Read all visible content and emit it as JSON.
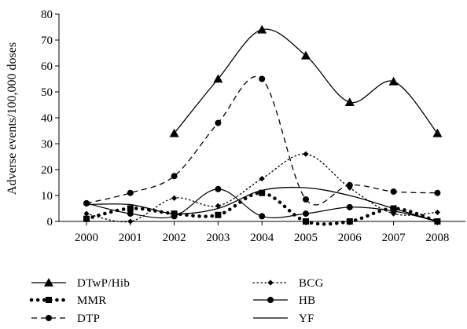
{
  "chart_data": {
    "type": "line",
    "ylabel": "Adverse events/100,000 doses",
    "ylim": [
      0,
      80
    ],
    "yticks": [
      0,
      10,
      20,
      30,
      40,
      50,
      60,
      70,
      80
    ],
    "categories": [
      "2000",
      "2001",
      "2002",
      "2003",
      "2004",
      "2005",
      "2006",
      "2007",
      "2008"
    ],
    "grid": false,
    "legend_placement": "bottom",
    "series": [
      {
        "name": "DTwP/Hib",
        "x": [
          "2002",
          "2003",
          "2004",
          "2005",
          "2006",
          "2007",
          "2008"
        ],
        "values": [
          34,
          55,
          74,
          64,
          46,
          54,
          34
        ],
        "line": "solid",
        "marker": "triangle",
        "color": "#000000"
      },
      {
        "name": "BCG",
        "x": [
          "2000",
          "2001",
          "2002",
          "2003",
          "2004",
          "2005",
          "2006",
          "2007",
          "2008"
        ],
        "values": [
          3,
          0,
          9,
          6,
          16.5,
          26,
          13,
          3,
          3.5
        ],
        "line": "dotted",
        "marker": "diamond",
        "color": "#000000"
      },
      {
        "name": "MMR",
        "x": [
          "2000",
          "2001",
          "2002",
          "2003",
          "2004",
          "2005",
          "2006",
          "2007",
          "2008"
        ],
        "values": [
          1,
          5,
          3,
          2.5,
          11,
          0,
          0,
          5,
          0
        ],
        "line": "heavy-dotted",
        "marker": "square",
        "color": "#000000"
      },
      {
        "name": "HB",
        "x": [
          "2000",
          "2001",
          "2002",
          "2003",
          "2004",
          "2005",
          "2006",
          "2007",
          "2008"
        ],
        "values": [
          7,
          3,
          2,
          12.5,
          2,
          3,
          5.5,
          4,
          0
        ],
        "line": "solid-thin",
        "marker": "circle",
        "color": "#000000"
      },
      {
        "name": "DTP",
        "x": [
          "2000",
          "2001",
          "2002",
          "2003",
          "2004",
          "2005",
          "2006",
          "2007",
          "2008"
        ],
        "values": [
          7,
          11,
          17.5,
          38,
          55,
          8.5,
          14,
          11.5,
          11
        ],
        "line": "dashed",
        "marker": "circle",
        "color": "#000000"
      },
      {
        "name": "YF",
        "x": [
          "2000",
          "2001",
          "2002",
          "2003",
          "2004",
          "2005",
          "2006",
          "2007",
          "2008"
        ],
        "values": [
          6.5,
          6.5,
          3,
          5,
          12,
          13,
          10,
          5,
          0
        ],
        "line": "solid",
        "marker": "none",
        "color": "#000000"
      }
    ],
    "legend_order": [
      "DTwP/Hib",
      "BCG",
      "MMR",
      "HB",
      "DTP",
      "YF"
    ]
  }
}
